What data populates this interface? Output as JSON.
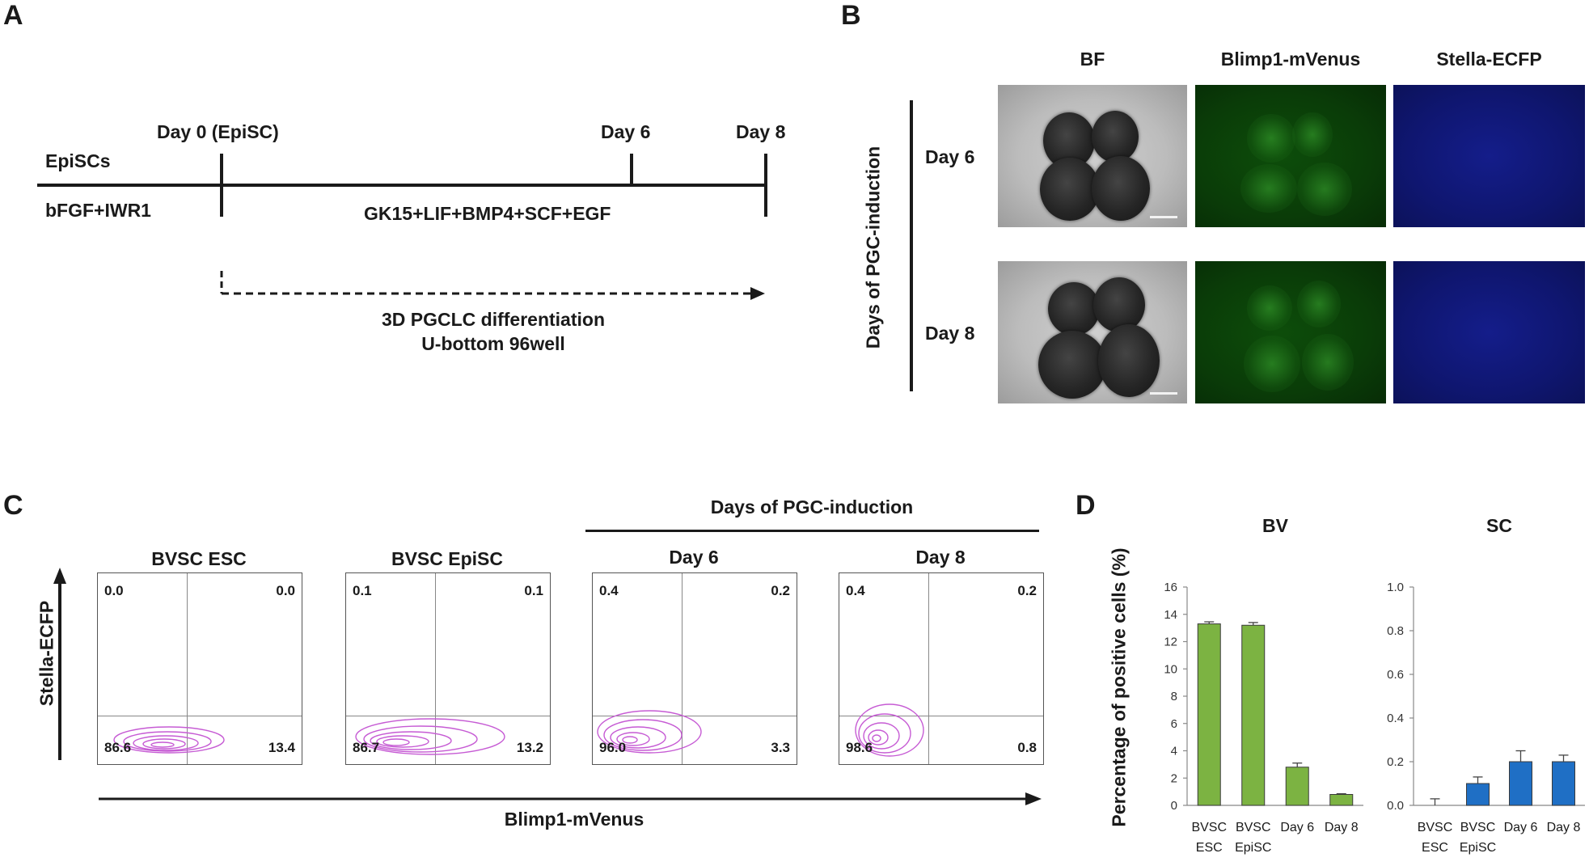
{
  "panel_letters": {
    "a": "A",
    "b": "B",
    "c": "C",
    "d": "D"
  },
  "panel_a": {
    "row_title": "EpiSCs",
    "pre_medium": "bFGF+IWR1",
    "day0_label": "Day 0 (EpiSC)",
    "day6_label": "Day 6",
    "day8_label": "Day 8",
    "induction_medium": "GK15+LIF+BMP4+SCF+EGF",
    "method_line1": "3D PGCLC differentiation",
    "method_line2": "U-bottom 96well"
  },
  "panel_b": {
    "columns": [
      "BF",
      "Blimp1-mVenus",
      "Stella-ECFP"
    ],
    "rows": [
      "Day 6",
      "Day 8"
    ],
    "axis_title": "Days of PGC-induction"
  },
  "panel_c": {
    "group_title": "Days of PGC-induction",
    "y_axis": "Stella-ECFP",
    "x_axis": "Blimp1-mVenus",
    "plots": [
      {
        "title": "BVSC ESC",
        "ul": "0.0",
        "ur": "0.0",
        "ll": "86.6",
        "lr": "13.4"
      },
      {
        "title": "BVSC EpiSC",
        "ul": "0.1",
        "ur": "0.1",
        "ll": "86.7",
        "lr": "13.2"
      },
      {
        "title": "Day 6",
        "ul": "0.4",
        "ur": "0.2",
        "ll": "96.0",
        "lr": "3.3"
      },
      {
        "title": "Day 8",
        "ul": "0.4",
        "ur": "0.2",
        "ll": "98.6",
        "lr": "0.8"
      }
    ]
  },
  "chart_data": [
    {
      "type": "bar",
      "title": "BV",
      "ylabel": "Percentage of positive cells (%)",
      "categories": [
        [
          "BVSC",
          "ESC"
        ],
        [
          "BVSC",
          "EpiSC"
        ],
        [
          "Day 6"
        ],
        [
          "Day 8"
        ]
      ],
      "values": [
        13.3,
        13.2,
        2.8,
        0.8
      ],
      "errors": [
        0.15,
        0.2,
        0.3,
        0.05
      ],
      "ylim": [
        0,
        16
      ],
      "yticks": [
        "0",
        "2",
        "4",
        "6",
        "8",
        "10",
        "12",
        "14",
        "16"
      ],
      "color": "#7cb342"
    },
    {
      "type": "bar",
      "title": "SC",
      "ylabel": "Percentage of positive cells (%)",
      "categories": [
        [
          "BVSC",
          "ESC"
        ],
        [
          "BVSC",
          "EpiSC"
        ],
        [
          "Day 6"
        ],
        [
          "Day 8"
        ]
      ],
      "values": [
        0.0,
        0.1,
        0.2,
        0.2
      ],
      "errors": [
        0.03,
        0.03,
        0.05,
        0.03
      ],
      "ylim": [
        0,
        1.0
      ],
      "yticks": [
        "0.0",
        "0.2",
        "0.4",
        "0.6",
        "0.8",
        "1.0"
      ],
      "color": "#1f6fc5"
    }
  ]
}
